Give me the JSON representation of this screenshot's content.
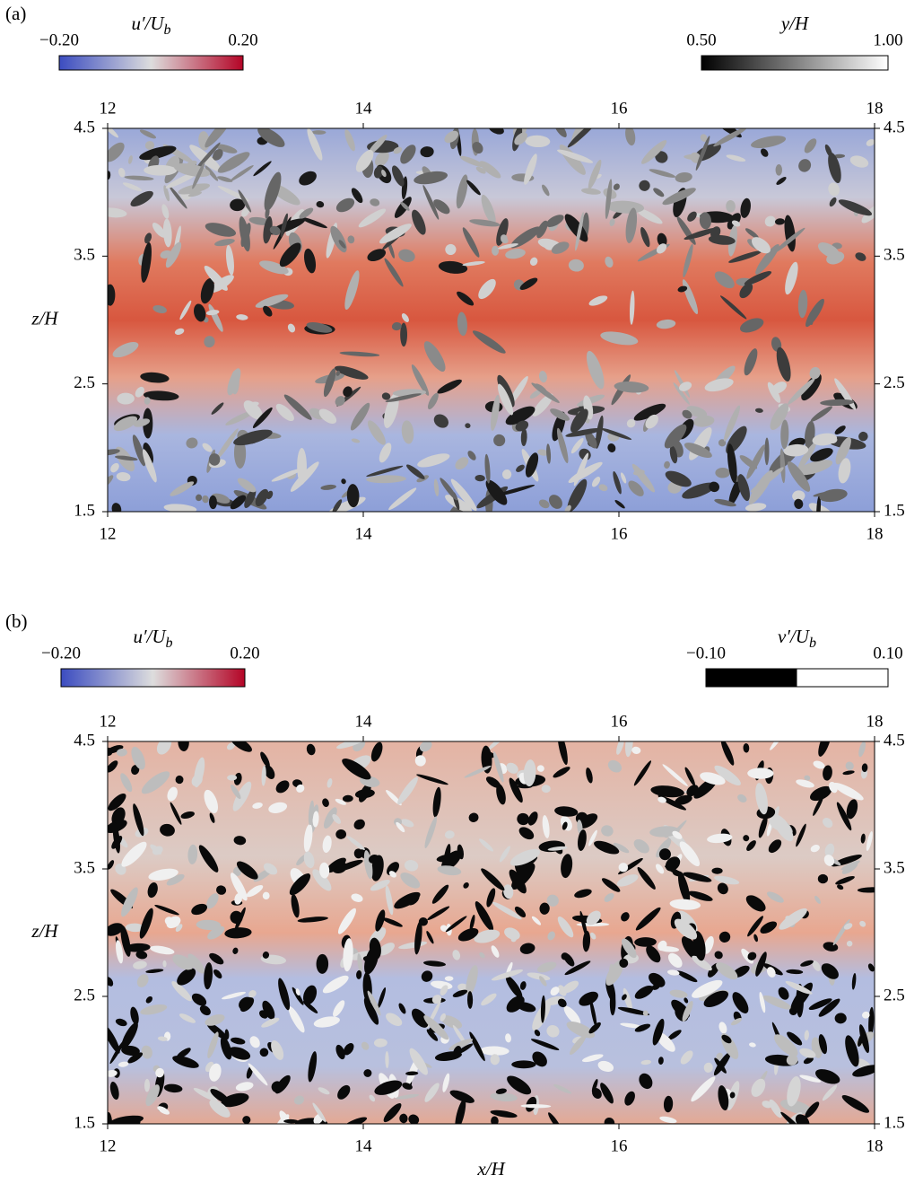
{
  "panels": [
    {
      "label": "(a)",
      "colorbars": [
        {
          "title": "u′/U",
          "title_sub": "b",
          "ticks": [
            "−0.20",
            "0.20"
          ]
        },
        {
          "title": "y/H",
          "ticks": [
            "0.50",
            "1.00"
          ]
        }
      ],
      "xticks": [
        12,
        14,
        16,
        18
      ],
      "zticks": [
        1.5,
        2.5,
        3.5,
        4.5
      ],
      "ylabel": "z/H"
    },
    {
      "label": "(b)",
      "colorbars": [
        {
          "title": "u′/U",
          "title_sub": "b",
          "ticks": [
            "−0.20",
            "0.20"
          ]
        },
        {
          "title": "v′/U",
          "title_sub": "b",
          "ticks": [
            "−0.10",
            "0.10"
          ]
        }
      ],
      "xticks": [
        12,
        14,
        16,
        18
      ],
      "zticks": [
        1.5,
        2.5,
        3.5,
        4.5
      ],
      "ylabel": "z/H",
      "xlabel": "x/H"
    }
  ]
}
